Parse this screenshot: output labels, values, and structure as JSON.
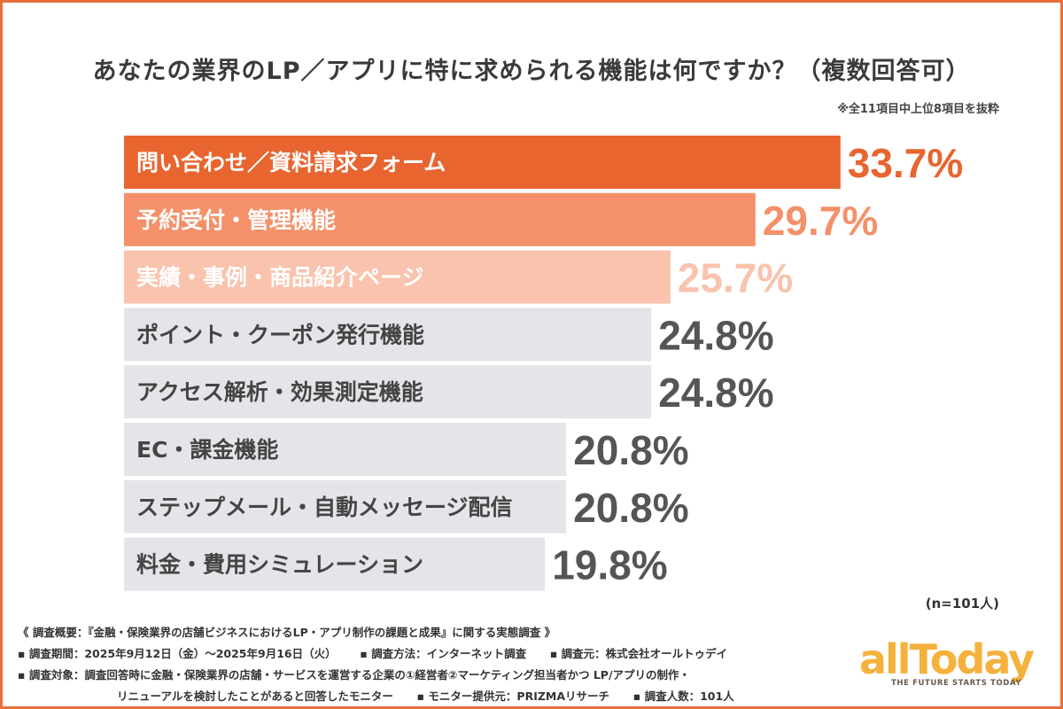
{
  "title": "あなたの業界のLP／アプリに特に求められる機能は何ですか？（複数回答可）",
  "note": "※全11項目中上位8項目を抜粋",
  "sample_size": "(n=101人)",
  "chart_data": {
    "type": "bar",
    "orientation": "horizontal",
    "title": "あなたの業界のLP／アプリに特に求められる機能は何ですか？（複数回答可）",
    "categories": [
      "問い合わせ／資料請求フォーム",
      "予約受付・管理機能",
      "実績・事例・商品紹介ページ",
      "ポイント・クーポン発行機能",
      "アクセス解析・効果測定機能",
      "EC・課金機能",
      "ステップメール・自動メッセージ配信",
      "料金・費用シミュレーション"
    ],
    "values": [
      33.7,
      29.7,
      25.7,
      24.8,
      24.8,
      20.8,
      20.8,
      19.8
    ],
    "value_labels": [
      "33.7%",
      "29.7%",
      "25.7%",
      "24.8%",
      "24.8%",
      "20.8%",
      "20.8%",
      "19.8%"
    ],
    "xlim": [
      0,
      40
    ],
    "unit": "%",
    "bar_colors": [
      "#e8652f",
      "#f4916a",
      "#f9c3ad",
      "#e4e4e9",
      "#e4e4e9",
      "#e4e4e9",
      "#e4e4e9",
      "#e4e4e9"
    ],
    "category_text_colors": [
      "#ffffff",
      "#ffffff",
      "#ffffff",
      "#444444",
      "#444444",
      "#444444",
      "#444444",
      "#444444"
    ],
    "value_text_colors": [
      "#e8652f",
      "#f4916a",
      "#f9c3ad",
      "#555555",
      "#555555",
      "#555555",
      "#555555",
      "#555555"
    ]
  },
  "footer": {
    "overview": "《 調査概要：『金融・保険業界の店舗ビジネスにおけるLP・アプリ制作の課題と成果』に関する実態調査 》",
    "period": "▪ 調査期間：2025年9月12日（金）〜2025年9月16日（火）",
    "method": "▪ 調査方法：インターネット調査",
    "organizer": "▪ 調査元：株式会社オールトゥデイ",
    "target_line1": "▪ 調査対象：調査回答時に金融・保険業界の店舗・サービスを運営する企業の①経営者②マーケティング担当者かつ LP/アプリの制作・",
    "target_line2": "リニューアルを検討したことがあると回答したモニター",
    "provider": "▪ モニター提供元：PRIZMAリサーチ",
    "count": "▪ 調査人数：101人"
  },
  "logo": {
    "name": "allToday",
    "tagline": "THE FUTURE STARTS TODAY",
    "color": "#f4b13c"
  }
}
